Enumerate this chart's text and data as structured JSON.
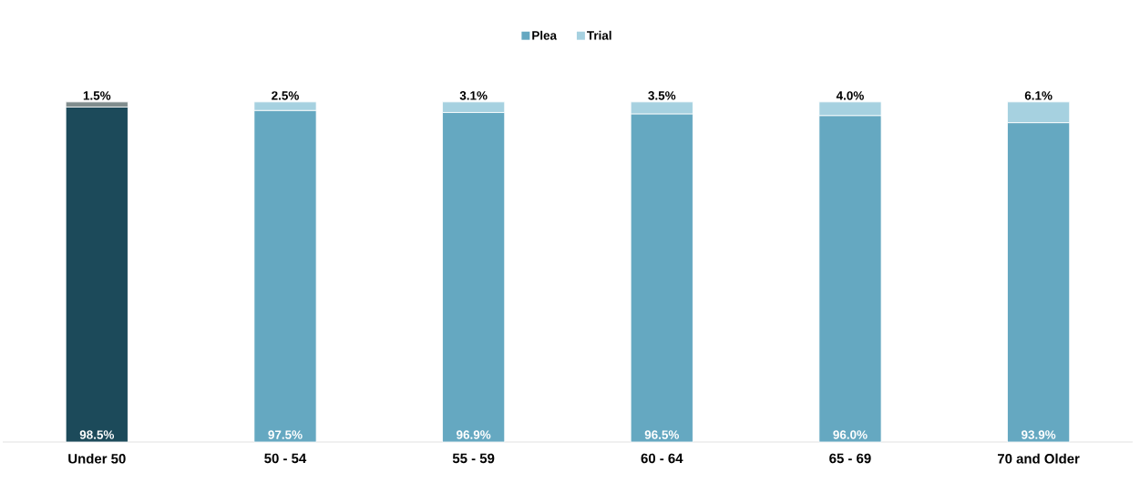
{
  "chart_data": {
    "type": "bar",
    "stacked": true,
    "legend": "top",
    "categories": [
      "Under 50",
      "50 - 54",
      "55 - 59",
      "60 - 64",
      "65 - 69",
      "70 and Older"
    ],
    "series": [
      {
        "name": "Plea",
        "color": "#65a8c1",
        "colors": [
          "#1c4a5a",
          "#65a8c1",
          "#65a8c1",
          "#65a8c1",
          "#65a8c1",
          "#65a8c1"
        ],
        "values": [
          98.5,
          97.5,
          96.9,
          96.5,
          96.0,
          93.9
        ],
        "value_labels": [
          "98.5%",
          "97.5%",
          "96.9%",
          "96.5%",
          "96.0%",
          "93.9%"
        ]
      },
      {
        "name": "Trial",
        "color": "#a6d1e0",
        "colors": [
          "#7f8c8d",
          "#a6d1e0",
          "#a6d1e0",
          "#a6d1e0",
          "#a6d1e0",
          "#a6d1e0"
        ],
        "values": [
          1.5,
          2.5,
          3.1,
          3.5,
          4.0,
          6.1
        ],
        "value_labels": [
          "1.5%",
          "2.5%",
          "3.1%",
          "3.5%",
          "4.0%",
          "6.1%"
        ]
      }
    ]
  }
}
